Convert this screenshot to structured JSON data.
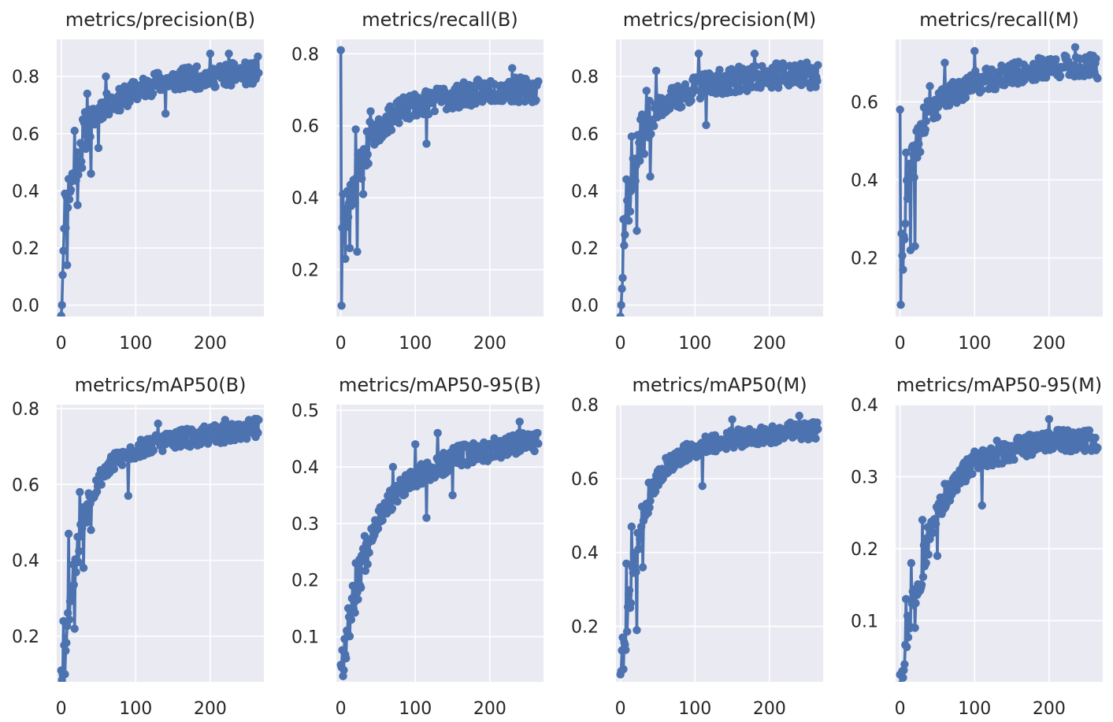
{
  "figure": {
    "background": "#ffffff",
    "axes_background": "#eaeaf2",
    "grid_color": "#ffffff",
    "line_color": "#4c72b0"
  },
  "chart_data": [
    {
      "type": "line",
      "title": "metrics/precision(B)",
      "xlim": [
        -6,
        272
      ],
      "ylim": [
        -0.04,
        0.93
      ],
      "xticks": [
        0,
        100,
        200
      ],
      "xtick_labels": [
        "0",
        "100",
        "200"
      ],
      "yticks": [
        0.0,
        0.2,
        0.4,
        0.6,
        0.8
      ],
      "ytick_labels": [
        "0.0",
        "0.2",
        "0.4",
        "0.6",
        "0.8"
      ],
      "grid": true,
      "legend": "none",
      "anchors": [
        [
          0,
          0.0
        ],
        [
          3,
          0.19
        ],
        [
          6,
          0.33
        ],
        [
          10,
          0.4
        ],
        [
          15,
          0.44
        ],
        [
          20,
          0.49
        ],
        [
          30,
          0.6
        ],
        [
          40,
          0.64
        ],
        [
          50,
          0.68
        ],
        [
          60,
          0.7
        ],
        [
          80,
          0.72
        ],
        [
          100,
          0.75
        ],
        [
          130,
          0.78
        ],
        [
          160,
          0.79
        ],
        [
          200,
          0.8
        ],
        [
          240,
          0.81
        ],
        [
          265,
          0.81
        ]
      ],
      "noise": 0.04,
      "n_points": 266,
      "seed": 11,
      "spikes": [
        [
          1,
          0.0
        ],
        [
          3,
          0.19
        ],
        [
          5,
          0.39
        ],
        [
          8,
          0.14
        ],
        [
          11,
          0.37
        ],
        [
          18,
          0.61
        ],
        [
          22,
          0.35
        ],
        [
          28,
          0.48
        ],
        [
          35,
          0.74
        ],
        [
          40,
          0.46
        ],
        [
          50,
          0.55
        ],
        [
          60,
          0.8
        ],
        [
          140,
          0.67
        ],
        [
          200,
          0.88
        ],
        [
          225,
          0.88
        ],
        [
          264,
          0.87
        ]
      ]
    },
    {
      "type": "line",
      "title": "metrics/recall(B)",
      "xlim": [
        -6,
        272
      ],
      "ylim": [
        0.07,
        0.84
      ],
      "xticks": [
        0,
        100,
        200
      ],
      "xtick_labels": [
        "0",
        "100",
        "200"
      ],
      "yticks": [
        0.2,
        0.4,
        0.6,
        0.8
      ],
      "ytick_labels": [
        "0.2",
        "0.4",
        "0.6",
        "0.8"
      ],
      "grid": true,
      "legend": "none",
      "anchors": [
        [
          0,
          0.3
        ],
        [
          5,
          0.32
        ],
        [
          10,
          0.38
        ],
        [
          20,
          0.45
        ],
        [
          30,
          0.52
        ],
        [
          40,
          0.56
        ],
        [
          60,
          0.61
        ],
        [
          80,
          0.64
        ],
        [
          100,
          0.66
        ],
        [
          150,
          0.68
        ],
        [
          200,
          0.7
        ],
        [
          265,
          0.7
        ]
      ],
      "noise": 0.035,
      "n_points": 266,
      "seed": 23,
      "spikes": [
        [
          0,
          0.81
        ],
        [
          1,
          0.1
        ],
        [
          3,
          0.41
        ],
        [
          6,
          0.23
        ],
        [
          12,
          0.26
        ],
        [
          20,
          0.59
        ],
        [
          22,
          0.25
        ],
        [
          30,
          0.41
        ],
        [
          40,
          0.64
        ],
        [
          115,
          0.55
        ],
        [
          230,
          0.76
        ]
      ]
    },
    {
      "type": "line",
      "title": "metrics/precision(M)",
      "xlim": [
        -6,
        272
      ],
      "ylim": [
        -0.04,
        0.93
      ],
      "xticks": [
        0,
        100,
        200
      ],
      "xtick_labels": [
        "0",
        "100",
        "200"
      ],
      "yticks": [
        0.0,
        0.2,
        0.4,
        0.6,
        0.8
      ],
      "ytick_labels": [
        "0.0",
        "0.2",
        "0.4",
        "0.6",
        "0.8"
      ],
      "grid": true,
      "legend": "none",
      "anchors": [
        [
          0,
          0.0
        ],
        [
          3,
          0.17
        ],
        [
          6,
          0.28
        ],
        [
          10,
          0.35
        ],
        [
          15,
          0.42
        ],
        [
          20,
          0.5
        ],
        [
          30,
          0.6
        ],
        [
          40,
          0.64
        ],
        [
          50,
          0.68
        ],
        [
          60,
          0.71
        ],
        [
          80,
          0.73
        ],
        [
          100,
          0.76
        ],
        [
          130,
          0.78
        ],
        [
          160,
          0.79
        ],
        [
          200,
          0.8
        ],
        [
          240,
          0.81
        ],
        [
          265,
          0.8
        ]
      ],
      "noise": 0.045,
      "n_points": 266,
      "seed": 37,
      "spikes": [
        [
          1,
          0.0
        ],
        [
          4,
          0.3
        ],
        [
          8,
          0.44
        ],
        [
          15,
          0.59
        ],
        [
          22,
          0.26
        ],
        [
          28,
          0.6
        ],
        [
          35,
          0.75
        ],
        [
          40,
          0.45
        ],
        [
          48,
          0.82
        ],
        [
          105,
          0.88
        ],
        [
          115,
          0.63
        ],
        [
          180,
          0.88
        ],
        [
          265,
          0.84
        ]
      ]
    },
    {
      "type": "line",
      "title": "metrics/recall(M)",
      "xlim": [
        -6,
        272
      ],
      "ylim": [
        0.05,
        0.76
      ],
      "xticks": [
        0,
        100,
        200
      ],
      "xtick_labels": [
        "0",
        "100",
        "200"
      ],
      "yticks": [
        0.2,
        0.4,
        0.6
      ],
      "ytick_labels": [
        "0.2",
        "0.4",
        "0.6"
      ],
      "grid": true,
      "legend": "none",
      "anchors": [
        [
          0,
          0.18
        ],
        [
          3,
          0.24
        ],
        [
          8,
          0.34
        ],
        [
          15,
          0.42
        ],
        [
          20,
          0.47
        ],
        [
          30,
          0.54
        ],
        [
          40,
          0.57
        ],
        [
          60,
          0.61
        ],
        [
          80,
          0.63
        ],
        [
          100,
          0.65
        ],
        [
          150,
          0.67
        ],
        [
          200,
          0.69
        ],
        [
          265,
          0.69
        ]
      ],
      "noise": 0.03,
      "n_points": 266,
      "seed": 41,
      "spikes": [
        [
          0,
          0.58
        ],
        [
          1,
          0.08
        ],
        [
          4,
          0.17
        ],
        [
          8,
          0.47
        ],
        [
          14,
          0.22
        ],
        [
          20,
          0.23
        ],
        [
          30,
          0.52
        ],
        [
          40,
          0.64
        ],
        [
          60,
          0.7
        ],
        [
          100,
          0.73
        ],
        [
          235,
          0.74
        ],
        [
          265,
          0.66
        ]
      ]
    },
    {
      "type": "line",
      "title": "metrics/mAP50(B)",
      "xlim": [
        -6,
        272
      ],
      "ylim": [
        0.08,
        0.81
      ],
      "xticks": [
        0,
        100,
        200
      ],
      "xtick_labels": [
        "0",
        "100",
        "200"
      ],
      "yticks": [
        0.2,
        0.4,
        0.6,
        0.8
      ],
      "ytick_labels": [
        "0.2",
        "0.4",
        "0.6",
        "0.8"
      ],
      "grid": true,
      "legend": "none",
      "anchors": [
        [
          0,
          0.11
        ],
        [
          5,
          0.17
        ],
        [
          10,
          0.27
        ],
        [
          15,
          0.35
        ],
        [
          20,
          0.4
        ],
        [
          30,
          0.52
        ],
        [
          40,
          0.57
        ],
        [
          50,
          0.61
        ],
        [
          60,
          0.64
        ],
        [
          80,
          0.67
        ],
        [
          100,
          0.69
        ],
        [
          130,
          0.71
        ],
        [
          160,
          0.72
        ],
        [
          200,
          0.73
        ],
        [
          240,
          0.74
        ],
        [
          265,
          0.75
        ]
      ],
      "noise": 0.025,
      "n_points": 266,
      "seed": 53,
      "spikes": [
        [
          0,
          0.11
        ],
        [
          3,
          0.24
        ],
        [
          5,
          0.1
        ],
        [
          10,
          0.47
        ],
        [
          18,
          0.22
        ],
        [
          25,
          0.58
        ],
        [
          30,
          0.38
        ],
        [
          40,
          0.48
        ],
        [
          90,
          0.57
        ],
        [
          130,
          0.76
        ],
        [
          220,
          0.77
        ],
        [
          265,
          0.77
        ]
      ]
    },
    {
      "type": "line",
      "title": "metrics/mAP50-95(B)",
      "xlim": [
        -6,
        272
      ],
      "ylim": [
        0.02,
        0.51
      ],
      "xticks": [
        0,
        100,
        200
      ],
      "xtick_labels": [
        "0",
        "100",
        "200"
      ],
      "yticks": [
        0.1,
        0.2,
        0.3,
        0.4,
        0.5
      ],
      "ytick_labels": [
        "0.1",
        "0.2",
        "0.3",
        "0.4",
        "0.5"
      ],
      "grid": true,
      "legend": "none",
      "anchors": [
        [
          0,
          0.05
        ],
        [
          5,
          0.08
        ],
        [
          10,
          0.12
        ],
        [
          20,
          0.18
        ],
        [
          30,
          0.24
        ],
        [
          40,
          0.28
        ],
        [
          50,
          0.31
        ],
        [
          60,
          0.33
        ],
        [
          80,
          0.36
        ],
        [
          100,
          0.38
        ],
        [
          130,
          0.4
        ],
        [
          160,
          0.42
        ],
        [
          200,
          0.43
        ],
        [
          240,
          0.44
        ],
        [
          265,
          0.45
        ]
      ],
      "noise": 0.02,
      "n_points": 266,
      "seed": 67,
      "spikes": [
        [
          0,
          0.05
        ],
        [
          3,
          0.03
        ],
        [
          10,
          0.15
        ],
        [
          20,
          0.23
        ],
        [
          70,
          0.4
        ],
        [
          100,
          0.44
        ],
        [
          115,
          0.31
        ],
        [
          130,
          0.46
        ],
        [
          150,
          0.35
        ],
        [
          240,
          0.48
        ]
      ]
    },
    {
      "type": "line",
      "title": "metrics/mAP50(M)",
      "xlim": [
        -6,
        272
      ],
      "ylim": [
        0.05,
        0.8
      ],
      "xticks": [
        0,
        100,
        200
      ],
      "xtick_labels": [
        "0",
        "100",
        "200"
      ],
      "yticks": [
        0.2,
        0.4,
        0.6,
        0.8
      ],
      "ytick_labels": [
        "0.2",
        "0.4",
        "0.6",
        "0.8"
      ],
      "grid": true,
      "legend": "none",
      "anchors": [
        [
          0,
          0.07
        ],
        [
          5,
          0.14
        ],
        [
          10,
          0.24
        ],
        [
          15,
          0.32
        ],
        [
          20,
          0.38
        ],
        [
          30,
          0.5
        ],
        [
          40,
          0.56
        ],
        [
          50,
          0.6
        ],
        [
          60,
          0.63
        ],
        [
          80,
          0.66
        ],
        [
          100,
          0.68
        ],
        [
          130,
          0.7
        ],
        [
          160,
          0.71
        ],
        [
          200,
          0.72
        ],
        [
          240,
          0.73
        ],
        [
          265,
          0.73
        ]
      ],
      "noise": 0.025,
      "n_points": 266,
      "seed": 79,
      "spikes": [
        [
          0,
          0.07
        ],
        [
          3,
          0.17
        ],
        [
          8,
          0.37
        ],
        [
          15,
          0.47
        ],
        [
          22,
          0.19
        ],
        [
          30,
          0.36
        ],
        [
          50,
          0.62
        ],
        [
          110,
          0.58
        ],
        [
          150,
          0.76
        ],
        [
          240,
          0.77
        ]
      ]
    },
    {
      "type": "line",
      "title": "metrics/mAP50-95(M)",
      "xlim": [
        -6,
        272
      ],
      "ylim": [
        0.015,
        0.4
      ],
      "xticks": [
        0,
        100,
        200
      ],
      "xtick_labels": [
        "0",
        "100",
        "200"
      ],
      "yticks": [
        0.1,
        0.2,
        0.3,
        0.4
      ],
      "ytick_labels": [
        "0.1",
        "0.2",
        "0.3",
        "0.4"
      ],
      "grid": true,
      "legend": "none",
      "anchors": [
        [
          0,
          0.03
        ],
        [
          5,
          0.05
        ],
        [
          10,
          0.09
        ],
        [
          20,
          0.14
        ],
        [
          30,
          0.18
        ],
        [
          40,
          0.22
        ],
        [
          50,
          0.25
        ],
        [
          60,
          0.27
        ],
        [
          80,
          0.3
        ],
        [
          100,
          0.32
        ],
        [
          130,
          0.33
        ],
        [
          160,
          0.34
        ],
        [
          200,
          0.35
        ],
        [
          240,
          0.35
        ],
        [
          265,
          0.35
        ]
      ],
      "noise": 0.015,
      "n_points": 266,
      "seed": 97,
      "spikes": [
        [
          0,
          0.025
        ],
        [
          3,
          0.03
        ],
        [
          8,
          0.13
        ],
        [
          15,
          0.18
        ],
        [
          20,
          0.09
        ],
        [
          30,
          0.24
        ],
        [
          50,
          0.19
        ],
        [
          60,
          0.29
        ],
        [
          110,
          0.26
        ],
        [
          130,
          0.35
        ],
        [
          200,
          0.38
        ],
        [
          265,
          0.34
        ]
      ]
    }
  ]
}
